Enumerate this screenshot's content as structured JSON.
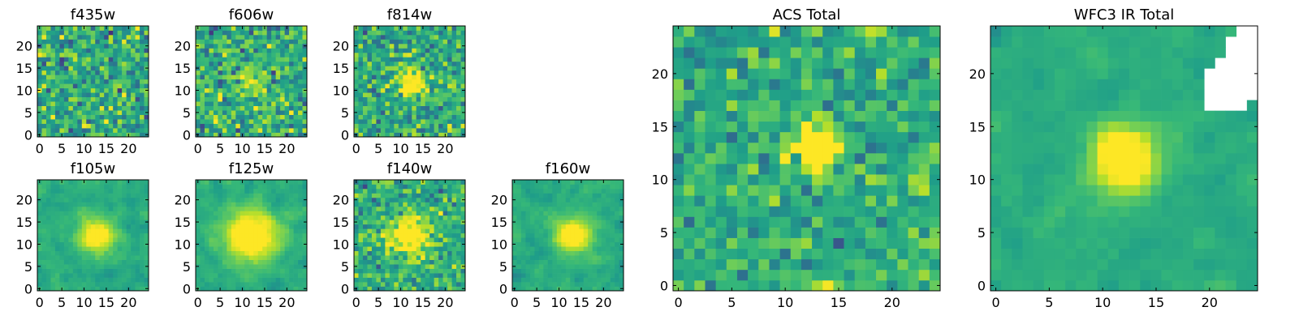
{
  "chart_data": [
    {
      "type": "heatmap",
      "title": "f435w",
      "nx": 25,
      "ny": 25,
      "colormap": "viridis",
      "xticks": [
        0,
        5,
        10,
        15,
        20
      ],
      "yticks": [
        0,
        5,
        10,
        15,
        20
      ],
      "xlim": [
        -0.5,
        24.5
      ],
      "ylim": [
        -0.5,
        24.5
      ],
      "values_description_note": null,
      "peak": null,
      "seed": 11,
      "noise": 1.0,
      "holes": []
    },
    {
      "type": "heatmap",
      "title": "f606w",
      "nx": 25,
      "ny": 25,
      "colormap": "viridis",
      "xticks": [
        0,
        5,
        10,
        15,
        20
      ],
      "yticks": [
        0,
        5,
        10,
        15,
        20
      ],
      "xlim": [
        -0.5,
        24.5
      ],
      "ylim": [
        -0.5,
        24.5
      ],
      "peak": {
        "x": 12,
        "y": 12,
        "amp": 0.25,
        "sigma": 2.5
      },
      "seed": 23,
      "noise": 0.95,
      "holes": []
    },
    {
      "type": "heatmap",
      "title": "f814w",
      "nx": 25,
      "ny": 25,
      "colormap": "viridis",
      "xticks": [
        0,
        5,
        10,
        15,
        20
      ],
      "yticks": [
        0,
        5,
        10,
        15,
        20
      ],
      "xlim": [
        -0.5,
        24.5
      ],
      "ylim": [
        -0.5,
        24.5
      ],
      "peak": {
        "x": 13,
        "y": 12,
        "amp": 0.5,
        "sigma": 2.2
      },
      "seed": 37,
      "noise": 0.9,
      "holes": []
    },
    {
      "type": "heatmap",
      "title": "f105w",
      "nx": 25,
      "ny": 25,
      "colormap": "viridis",
      "xticks": [
        0,
        5,
        10,
        15,
        20
      ],
      "yticks": [
        0,
        5,
        10,
        15,
        20
      ],
      "xlim": [
        -0.5,
        24.5
      ],
      "ylim": [
        -0.5,
        24.5
      ],
      "peak": {
        "x": 13,
        "y": 12,
        "amp": 0.6,
        "sigma": 2.5
      },
      "seed": 41,
      "noise": 0.6,
      "holes": []
    },
    {
      "type": "heatmap",
      "title": "f125w",
      "nx": 25,
      "ny": 25,
      "colormap": "viridis",
      "xticks": [
        0,
        5,
        10,
        15,
        20
      ],
      "yticks": [
        0,
        5,
        10,
        15,
        20
      ],
      "xlim": [
        -0.5,
        24.5
      ],
      "ylim": [
        -0.5,
        24.5
      ],
      "peak": {
        "x": 12,
        "y": 12,
        "amp": 0.6,
        "sigma": 4.0
      },
      "seed": 53,
      "noise": 0.6,
      "holes": []
    },
    {
      "type": "heatmap",
      "title": "f140w",
      "nx": 25,
      "ny": 25,
      "colormap": "viridis",
      "xticks": [
        0,
        5,
        10,
        15,
        20
      ],
      "yticks": [
        0,
        5,
        10,
        15,
        20
      ],
      "xlim": [
        -0.5,
        24.5
      ],
      "ylim": [
        -0.5,
        24.5
      ],
      "peak": {
        "x": 12,
        "y": 12,
        "amp": 0.55,
        "sigma": 3.0
      },
      "seed": 67,
      "noise": 0.75,
      "holes": []
    },
    {
      "type": "heatmap",
      "title": "f160w",
      "nx": 25,
      "ny": 25,
      "colormap": "viridis",
      "xticks": [
        0,
        5,
        10,
        15,
        20
      ],
      "yticks": [
        0,
        5,
        10,
        15,
        20
      ],
      "xlim": [
        -0.5,
        24.5
      ],
      "ylim": [
        -0.5,
        24.5
      ],
      "peak": {
        "x": 13,
        "y": 12,
        "amp": 0.65,
        "sigma": 2.5
      },
      "seed": 79,
      "noise": 0.6,
      "holes": []
    },
    {
      "type": "heatmap",
      "title": "ACS Total",
      "nx": 25,
      "ny": 25,
      "colormap": "viridis",
      "xticks": [
        0,
        5,
        10,
        15,
        20
      ],
      "yticks": [
        0,
        5,
        10,
        15,
        20
      ],
      "xlim": [
        -0.5,
        24.5
      ],
      "ylim": [
        -0.5,
        24.5
      ],
      "peak": {
        "x": 13,
        "y": 13,
        "amp": 0.55,
        "sigma": 1.6
      },
      "seed": 97,
      "noise": 0.75,
      "holes": []
    },
    {
      "type": "heatmap",
      "title": "WFC3 IR Total",
      "nx": 25,
      "ny": 25,
      "colormap": "viridis",
      "xticks": [
        0,
        5,
        10,
        15,
        20
      ],
      "yticks": [
        0,
        5,
        10,
        15,
        20
      ],
      "xlim": [
        -0.5,
        24.5
      ],
      "ylim": [
        -0.5,
        24.5
      ],
      "peak": {
        "x": 12,
        "y": 12,
        "amp": 0.75,
        "sigma": 2.0
      },
      "seed": 101,
      "noise": 0.45,
      "holes": [
        [
          20,
          17
        ],
        [
          21,
          17
        ],
        [
          22,
          17
        ],
        [
          23,
          17
        ],
        [
          20,
          18
        ],
        [
          21,
          18
        ],
        [
          22,
          18
        ],
        [
          23,
          18
        ],
        [
          24,
          18
        ],
        [
          20,
          19
        ],
        [
          21,
          19
        ],
        [
          22,
          19
        ],
        [
          23,
          19
        ],
        [
          24,
          19
        ],
        [
          20,
          20
        ],
        [
          21,
          20
        ],
        [
          22,
          20
        ],
        [
          23,
          20
        ],
        [
          24,
          20
        ],
        [
          21,
          21
        ],
        [
          22,
          21
        ],
        [
          23,
          21
        ],
        [
          24,
          21
        ],
        [
          22,
          22
        ],
        [
          23,
          22
        ],
        [
          24,
          22
        ],
        [
          22,
          23
        ],
        [
          23,
          23
        ],
        [
          24,
          23
        ],
        [
          23,
          24
        ],
        [
          24,
          24
        ]
      ]
    }
  ]
}
